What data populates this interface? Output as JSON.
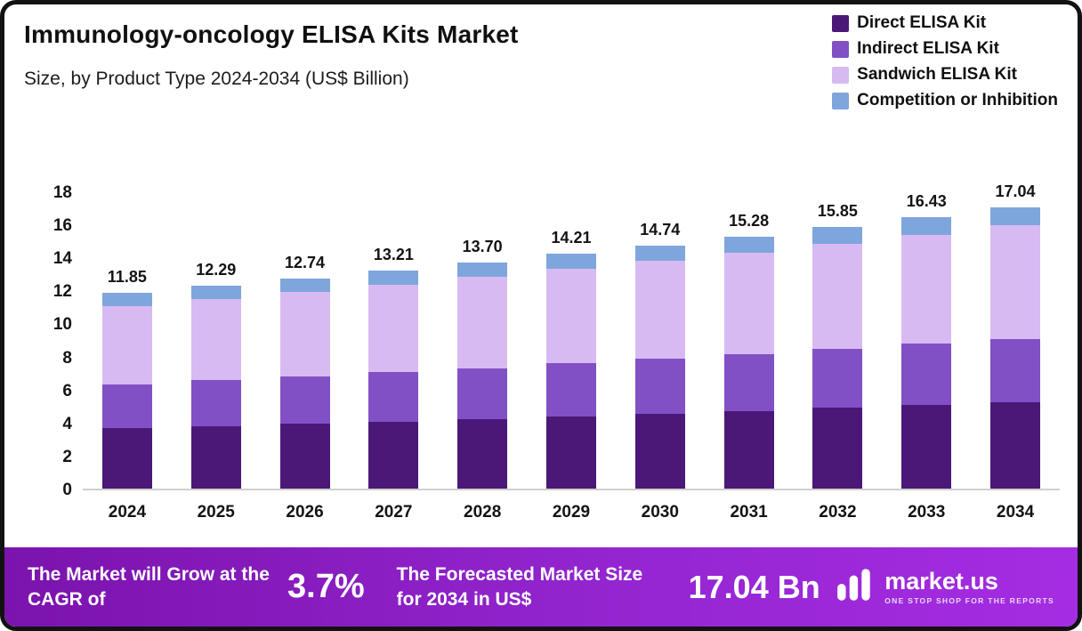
{
  "header": {
    "title": "Immunology-oncology  ELISA Kits Market",
    "subtitle": "Size, by Product Type 2024-2034 (US$ Billion)"
  },
  "legend": [
    {
      "label": "Direct ELISA Kit",
      "color": "#4b1878"
    },
    {
      "label": "Indirect ELISA Kit",
      "color": "#8150c5"
    },
    {
      "label": "Sandwich ELISA Kit",
      "color": "#d8baf2"
    },
    {
      "label": "Competition or Inhibition",
      "color": "#7ea6dc"
    }
  ],
  "chart_data": {
    "type": "bar",
    "stacked": true,
    "title": "Immunology-oncology ELISA Kits Market Size, by Product Type 2024-2034 (US$ Billion)",
    "xlabel": "",
    "ylabel": "US$ Billion",
    "ylim": [
      0,
      18
    ],
    "yticks": [
      0,
      2,
      4,
      6,
      8,
      10,
      12,
      14,
      16,
      18
    ],
    "grid": false,
    "legend_position": "top-right",
    "categories": [
      "2024",
      "2025",
      "2026",
      "2027",
      "2028",
      "2029",
      "2030",
      "2031",
      "2032",
      "2033",
      "2034"
    ],
    "totals": [
      "11.85",
      "12.29",
      "12.74",
      "13.21",
      "13.70",
      "14.21",
      "14.74",
      "15.28",
      "15.85",
      "16.43",
      "17.04"
    ],
    "series": [
      {
        "name": "Direct ELISA Kit",
        "color": "#4b1878",
        "values": [
          3.65,
          3.79,
          3.92,
          4.07,
          4.22,
          4.38,
          4.54,
          4.71,
          4.88,
          5.06,
          5.25
        ]
      },
      {
        "name": "Indirect ELISA Kit",
        "color": "#8150c5",
        "values": [
          2.67,
          2.77,
          2.87,
          2.97,
          3.08,
          3.2,
          3.32,
          3.44,
          3.57,
          3.7,
          3.83
        ]
      },
      {
        "name": "Sandwich ELISA Kit",
        "color": "#d8baf2",
        "values": [
          4.76,
          4.94,
          5.12,
          5.31,
          5.51,
          5.71,
          5.93,
          6.14,
          6.37,
          6.6,
          6.85
        ]
      },
      {
        "name": "Competition or Inhibition",
        "color": "#7ea6dc",
        "values": [
          0.77,
          0.79,
          0.83,
          0.86,
          0.89,
          0.92,
          0.95,
          0.99,
          1.03,
          1.07,
          1.11
        ]
      }
    ]
  },
  "footer": {
    "cagr_label": "The Market will Grow at the CAGR of",
    "cagr_value": "3.7%",
    "forecast_label": "The Forecasted Market Size for 2034 in US$",
    "forecast_value": "17.04 Bn",
    "brand_name": "market.us",
    "brand_tagline": "ONE STOP SHOP FOR THE REPORTS"
  }
}
